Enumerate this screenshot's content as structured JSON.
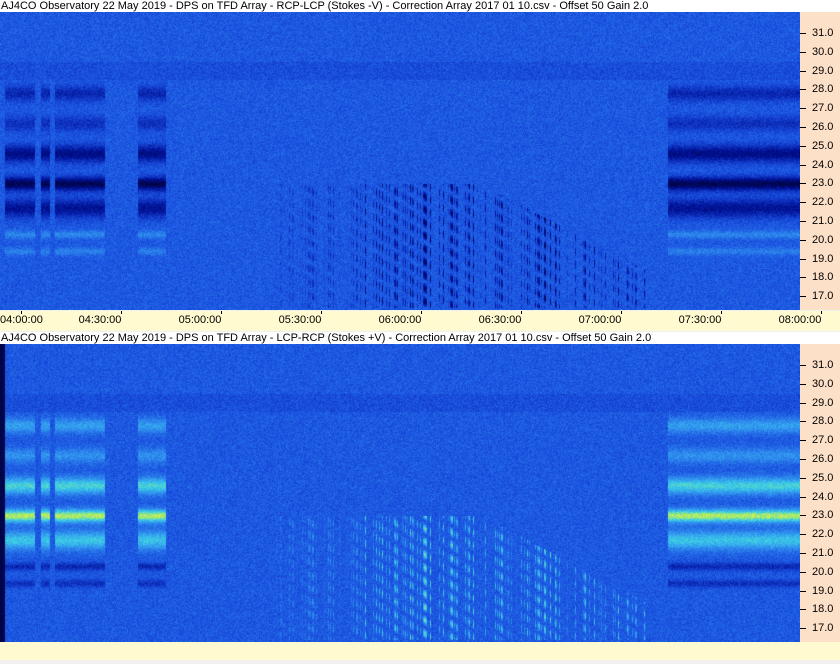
{
  "panels": [
    {
      "title": "AJ4CO Observatory 22 May 2019  -  DPS on TFD Array  -  RCP-LCP (Stokes -V)  -  Correction Array 2017 01 10.csv  -  Offset 50  Gain 2.0",
      "polarity": "dark"
    },
    {
      "title": "AJ4CO Observatory 22 May 2019  -  DPS on TFD Array  -  LCP-RCP (Stokes +V)  -  Correction Array 2017 01 10.csv  -  Offset 50  Gain 2.0",
      "polarity": "bright"
    }
  ],
  "freq_ticks": [
    "31.0",
    "30.0",
    "29.0",
    "28.0",
    "27.0",
    "26.0",
    "25.0",
    "24.0",
    "23.0",
    "22.0",
    "21.0",
    "20.0",
    "19.0",
    "18.0",
    "17.0"
  ],
  "time_ticks": [
    "04:00:00",
    "04:30:00",
    "05:00:00",
    "05:30:00",
    "06:00:00",
    "06:30:00",
    "07:00:00",
    "07:30:00",
    "08:00:00"
  ],
  "colors": {
    "axis_bg": "#fde0c8",
    "time_axis_bg": "#fffad0"
  }
}
